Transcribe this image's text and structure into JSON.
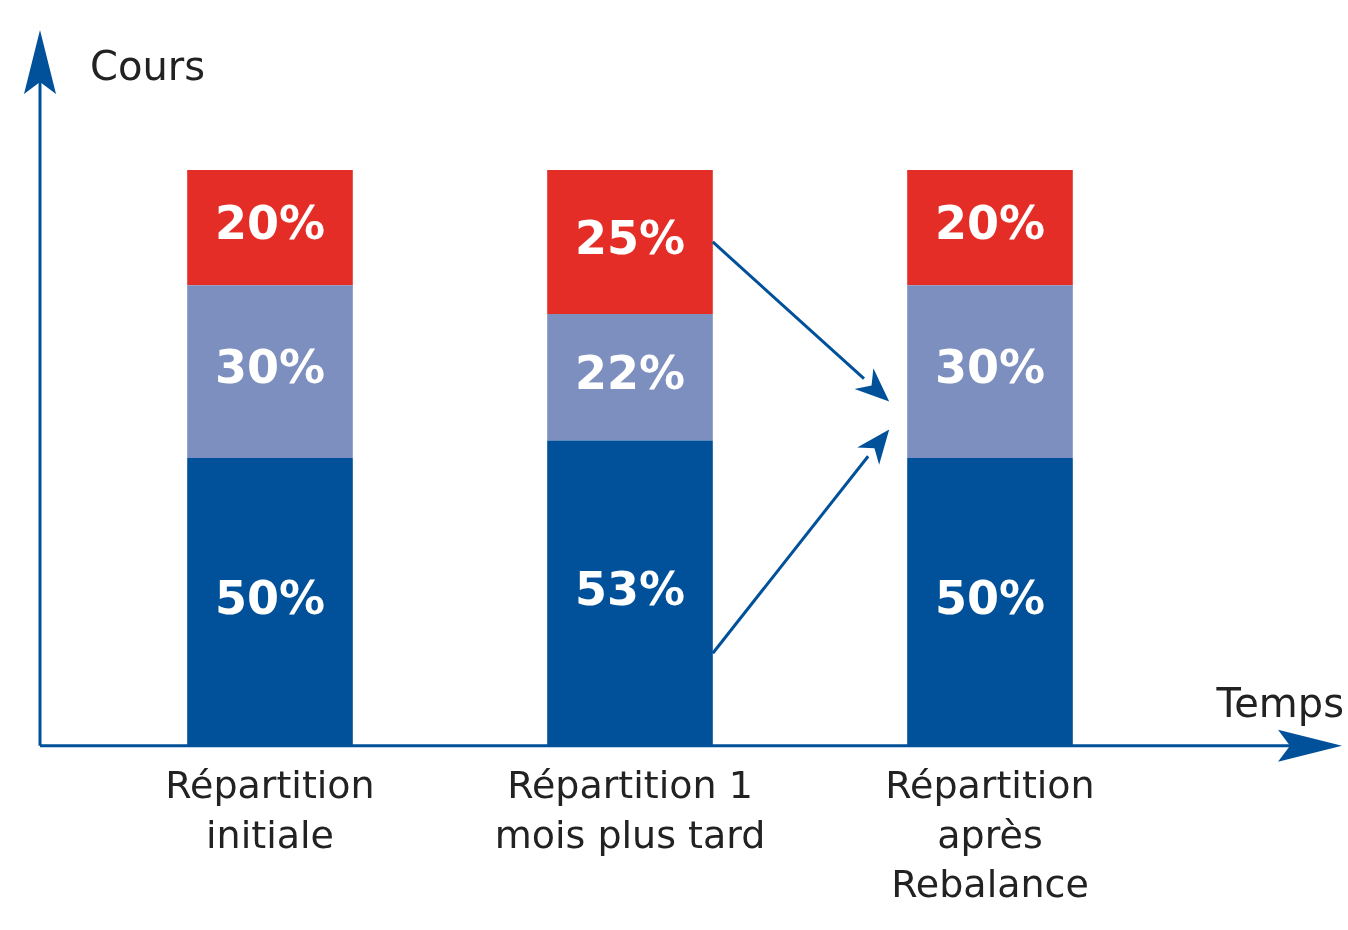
{
  "chart_data": {
    "type": "bar",
    "stacked": true,
    "xlabel": "Temps",
    "ylabel": "Cours",
    "categories": [
      "Répartition initiale",
      "Répartition 1 mois plus tard",
      "Répartition après Rebalance"
    ],
    "series": [
      {
        "color": "#00509a",
        "values": [
          50,
          53,
          50
        ],
        "value_labels": [
          "50%",
          "53%",
          "50%"
        ]
      },
      {
        "color": "#7d8fbf",
        "values": [
          30,
          22,
          30
        ],
        "value_labels": [
          "30%",
          "22%",
          "30%"
        ]
      },
      {
        "color": "#e52d27",
        "values": [
          20,
          25,
          20
        ],
        "value_labels": [
          "20%",
          "25%",
          "20%"
        ]
      }
    ],
    "legend": false,
    "grid": false
  }
}
